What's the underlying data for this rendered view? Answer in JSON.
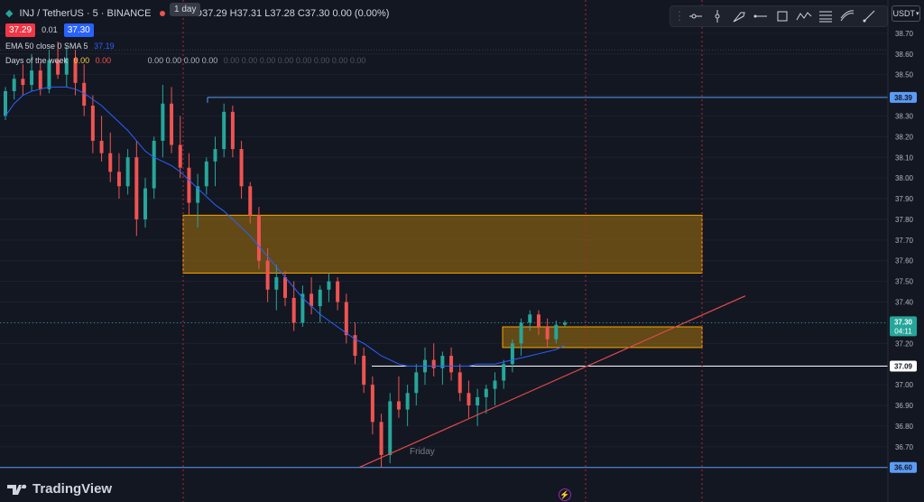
{
  "header": {
    "symbol": "INJ / TetherUS · 5 · BINANCE",
    "ohlc": "O37.29 H37.31 L37.28 C37.30 0.00 (0.00%)",
    "bid": "37.29",
    "spread": "0.01",
    "ask": "37.30",
    "ema_label": "EMA 50 close 0 SMA 5",
    "ema_value": "37.19",
    "dow_label": "Days of the week",
    "dow_v1": "0.00",
    "dow_v2": "0.00",
    "dow_v3": "0.00 0.00 0.00 0.00",
    "dow_v4": "0.00 0.00 0.00 0.00 0.00 0.00 0.00 0.00"
  },
  "tooltip": {
    "label": "1 day"
  },
  "currency": {
    "label": "USDT"
  },
  "logo": {
    "text": "TradingView"
  },
  "toolbar": {
    "icons": [
      "horizontal-ray-icon",
      "vertical-line-icon",
      "brush-icon",
      "horizontal-line-icon",
      "rectangle-icon",
      "path-icon",
      "fib-icon",
      "curve-icon",
      "trend-line-icon"
    ]
  },
  "colors": {
    "bg": "#131722",
    "up": "#26a69a",
    "down": "#ef5350",
    "ema": "#2962ff",
    "zone": "#f7a600",
    "trend": "#e04a4a",
    "level_white": "#ffffff",
    "level_blue": "#5b9cf6",
    "vline": "#b22833"
  },
  "chart_data": {
    "type": "candlestick",
    "ylim": [
      36.59,
      38.73
    ],
    "yticks": [
      "38.70",
      "38.60",
      "38.50",
      "38.40",
      "38.30",
      "38.20",
      "38.10",
      "38.00",
      "37.90",
      "37.80",
      "37.70",
      "37.60",
      "37.50",
      "37.40",
      "37.30",
      "37.20",
      "37.10",
      "37.00",
      "36.90",
      "36.80",
      "36.70",
      "36.60"
    ],
    "price_labels": [
      {
        "value": 38.39,
        "text": "38.39",
        "kind": "blue"
      },
      {
        "value": 37.09,
        "text": "37.09",
        "kind": "white"
      },
      {
        "value": 36.6,
        "text": "36.60",
        "kind": "blue"
      }
    ],
    "current": {
      "value": 37.3,
      "text": "37.30",
      "countdown": "04:11"
    },
    "annotations": [
      {
        "text": "Friday"
      }
    ],
    "candles": [
      [
        38.3,
        38.44,
        38.28,
        38.42
      ],
      [
        38.42,
        38.5,
        38.38,
        38.48
      ],
      [
        38.48,
        38.55,
        38.4,
        38.45
      ],
      [
        38.45,
        38.6,
        38.42,
        38.52
      ],
      [
        38.52,
        38.56,
        38.4,
        38.43
      ],
      [
        38.43,
        38.62,
        38.41,
        38.57
      ],
      [
        38.57,
        38.66,
        38.48,
        38.5
      ],
      [
        38.5,
        38.64,
        38.44,
        38.58
      ],
      [
        38.58,
        38.62,
        38.4,
        38.46
      ],
      [
        38.46,
        38.55,
        38.3,
        38.35
      ],
      [
        38.35,
        38.4,
        38.12,
        38.18
      ],
      [
        38.18,
        38.3,
        38.08,
        38.12
      ],
      [
        38.12,
        38.22,
        37.98,
        38.03
      ],
      [
        38.03,
        38.12,
        37.9,
        37.96
      ],
      [
        37.96,
        38.14,
        37.92,
        38.1
      ],
      [
        38.1,
        38.18,
        37.72,
        37.8
      ],
      [
        37.8,
        38.0,
        37.76,
        37.95
      ],
      [
        37.95,
        38.2,
        37.9,
        38.18
      ],
      [
        38.18,
        38.45,
        38.1,
        38.36
      ],
      [
        38.36,
        38.44,
        38.12,
        38.16
      ],
      [
        38.16,
        38.3,
        38.0,
        38.05
      ],
      [
        38.05,
        38.12,
        37.82,
        37.88
      ],
      [
        37.88,
        38.02,
        37.76,
        37.96
      ],
      [
        37.96,
        38.1,
        37.92,
        38.08
      ],
      [
        38.08,
        38.2,
        37.96,
        38.14
      ],
      [
        38.14,
        38.36,
        38.1,
        38.32
      ],
      [
        38.32,
        38.35,
        38.1,
        38.14
      ],
      [
        38.14,
        38.18,
        37.9,
        37.96
      ],
      [
        37.96,
        37.98,
        37.78,
        37.82
      ],
      [
        37.82,
        37.86,
        37.56,
        37.6
      ],
      [
        37.6,
        37.66,
        37.4,
        37.46
      ],
      [
        37.46,
        37.58,
        37.36,
        37.52
      ],
      [
        37.52,
        37.55,
        37.38,
        37.42
      ],
      [
        37.42,
        37.5,
        37.26,
        37.3
      ],
      [
        37.3,
        37.48,
        37.28,
        37.44
      ],
      [
        37.44,
        37.52,
        37.34,
        37.38
      ],
      [
        37.38,
        37.48,
        37.3,
        37.46
      ],
      [
        37.46,
        37.54,
        37.4,
        37.5
      ],
      [
        37.5,
        37.52,
        37.36,
        37.4
      ],
      [
        37.4,
        37.44,
        37.2,
        37.24
      ],
      [
        37.24,
        37.3,
        37.1,
        37.14
      ],
      [
        37.14,
        37.18,
        36.96,
        37.0
      ],
      [
        37.0,
        37.04,
        36.76,
        36.82
      ],
      [
        36.82,
        36.86,
        36.6,
        36.66
      ],
      [
        36.66,
        36.96,
        36.62,
        36.92
      ],
      [
        36.92,
        37.04,
        36.84,
        36.88
      ],
      [
        36.88,
        37.0,
        36.8,
        36.96
      ],
      [
        36.96,
        37.1,
        36.9,
        37.06
      ],
      [
        37.06,
        37.18,
        37.0,
        37.12
      ],
      [
        37.12,
        37.2,
        37.04,
        37.08
      ],
      [
        37.08,
        37.16,
        37.0,
        37.14
      ],
      [
        37.14,
        37.18,
        37.02,
        37.06
      ],
      [
        37.06,
        37.1,
        36.92,
        36.96
      ],
      [
        36.96,
        37.02,
        36.84,
        36.9
      ],
      [
        36.9,
        36.98,
        36.8,
        36.94
      ],
      [
        36.94,
        37.0,
        36.86,
        36.98
      ],
      [
        36.98,
        37.06,
        36.9,
        37.02
      ],
      [
        37.02,
        37.12,
        36.98,
        37.1
      ],
      [
        37.1,
        37.22,
        37.06,
        37.2
      ],
      [
        37.2,
        37.32,
        37.14,
        37.3
      ],
      [
        37.3,
        37.36,
        37.26,
        37.34
      ],
      [
        37.34,
        37.36,
        37.24,
        37.28
      ],
      [
        37.28,
        37.32,
        37.18,
        37.22
      ],
      [
        37.22,
        37.31,
        37.2,
        37.29
      ],
      [
        37.29,
        37.31,
        37.28,
        37.3
      ]
    ],
    "ema": [
      38.3,
      38.36,
      38.4,
      38.42,
      38.43,
      38.44,
      38.44,
      38.44,
      38.43,
      38.41,
      38.38,
      38.35,
      38.31,
      38.27,
      38.23,
      38.18,
      38.13,
      38.1,
      38.08,
      38.06,
      38.03,
      37.99,
      37.95,
      37.91,
      37.87,
      37.84,
      37.8,
      37.76,
      37.72,
      37.67,
      37.62,
      37.57,
      37.52,
      37.47,
      37.42,
      37.38,
      37.34,
      37.31,
      37.28,
      37.25,
      37.22,
      37.2,
      37.17,
      37.14,
      37.12,
      37.1,
      37.09,
      37.09,
      37.09,
      37.09,
      37.09,
      37.09,
      37.09,
      37.09,
      37.1,
      37.1,
      37.1,
      37.11,
      37.12,
      37.13,
      37.14,
      37.15,
      37.16,
      37.17,
      37.19
    ]
  }
}
